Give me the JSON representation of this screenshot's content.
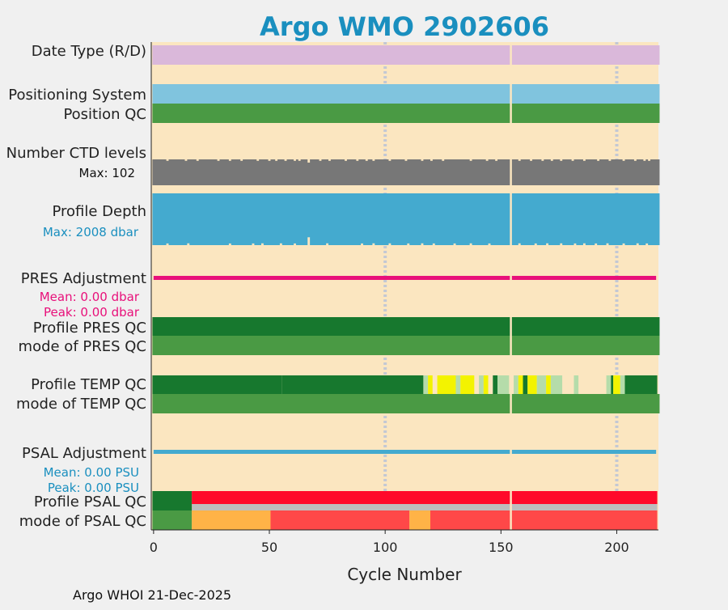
{
  "chart_data": {
    "type": "heatmap",
    "title": "Argo WMO 2902606",
    "xlabel": "Cycle Number",
    "xlim": [
      -1,
      218
    ],
    "xticks": [
      0,
      50,
      100,
      150,
      200
    ],
    "xtick_labels": [
      "0",
      "50",
      "100",
      "150",
      "200"
    ],
    "grid_x": [
      100,
      200
    ],
    "missing_cycle": 154,
    "footer": "Argo WHOI 21-Dec-2025",
    "colors": {
      "title": "#1a8fbf",
      "background": "#fbe6c0",
      "date_type": "#dab8da",
      "positioning": "#80c4de",
      "qc_good": "#4a9a44",
      "qc_dark": "#17782e",
      "ctd": "#777777",
      "depth": "#44aacf",
      "pres_adj": "#e8107a",
      "psal_adj": "#44aacf",
      "temp_light": "#b5dcaa",
      "temp_yellow": "#f3f300",
      "psal_red": "#ff0a2a",
      "psal_grey": "#bdbdbd",
      "psal_orange": "#ffb347",
      "psal_lightred": "#ff4848"
    },
    "rows": [
      {
        "id": "date-type",
        "label": "Date Type (R/D)"
      },
      {
        "id": "positioning-system",
        "label": "Positioning System"
      },
      {
        "id": "position-qc",
        "label": "Position QC"
      },
      {
        "id": "ctd-levels",
        "label": "Number CTD levels",
        "max_label": "Max: 102"
      },
      {
        "id": "profile-depth",
        "label": "Profile Depth",
        "max_label": "Max: 2008 dbar"
      },
      {
        "id": "pres-adjustment",
        "label": "PRES Adjustment",
        "mean_label": "Mean: 0.00 dbar",
        "peak_label": "Peak: 0.00 dbar"
      },
      {
        "id": "profile-pres-qc",
        "label": "Profile PRES QC"
      },
      {
        "id": "mode-pres-qc",
        "label": "mode of PRES QC"
      },
      {
        "id": "profile-temp-qc",
        "label": "Profile TEMP QC"
      },
      {
        "id": "mode-temp-qc",
        "label": "mode of TEMP QC"
      },
      {
        "id": "psal-adjustment",
        "label": "PSAL Adjustment",
        "mean_label": "Mean: 0.00 PSU",
        "peak_label": "Peak: 0.00 PSU"
      },
      {
        "id": "profile-psal-qc",
        "label": "Profile PSAL QC"
      },
      {
        "id": "mode-psal-qc",
        "label": "mode of PSAL QC"
      }
    ],
    "series": {
      "ctd_levels_max": 102,
      "ctd_levels_dips": [
        [
          6,
          101
        ],
        [
          14,
          101
        ],
        [
          19,
          101
        ],
        [
          28,
          101
        ],
        [
          33,
          101
        ],
        [
          38,
          101
        ],
        [
          45,
          101
        ],
        [
          50,
          101
        ],
        [
          53,
          101
        ],
        [
          57,
          101
        ],
        [
          61,
          101
        ],
        [
          63,
          101
        ],
        [
          67,
          94
        ],
        [
          72,
          101
        ],
        [
          76,
          101
        ],
        [
          83,
          101
        ],
        [
          88,
          101
        ],
        [
          92,
          101
        ],
        [
          95,
          101
        ],
        [
          102,
          101
        ],
        [
          109,
          101
        ],
        [
          116,
          101
        ],
        [
          120,
          101
        ],
        [
          125,
          101
        ],
        [
          137,
          101
        ],
        [
          144,
          101
        ],
        [
          148,
          101
        ],
        [
          158,
          101
        ],
        [
          163,
          101
        ],
        [
          168,
          101
        ],
        [
          172,
          101
        ],
        [
          176,
          101
        ],
        [
          181,
          101
        ],
        [
          186,
          101
        ],
        [
          192,
          101
        ],
        [
          197,
          101
        ],
        [
          203,
          101
        ],
        [
          208,
          101
        ],
        [
          212,
          101
        ],
        [
          214,
          101
        ]
      ],
      "profile_depth_max": 2008,
      "profile_depth_dips": [
        [
          6,
          1990
        ],
        [
          15,
          1985
        ],
        [
          33,
          1990
        ],
        [
          43,
          1990
        ],
        [
          47,
          1985
        ],
        [
          55,
          1985
        ],
        [
          61,
          1990
        ],
        [
          67,
          1750
        ],
        [
          75,
          1985
        ],
        [
          90,
          1990
        ],
        [
          95,
          1985
        ],
        [
          102,
          1985
        ],
        [
          110,
          1990
        ],
        [
          116,
          1985
        ],
        [
          121,
          1990
        ],
        [
          130,
          1990
        ],
        [
          137,
          1985
        ],
        [
          145,
          1990
        ],
        [
          158,
          1985
        ],
        [
          165,
          1990
        ],
        [
          170,
          1985
        ],
        [
          176,
          1985
        ],
        [
          182,
          1990
        ],
        [
          186,
          1985
        ],
        [
          191,
          1990
        ],
        [
          196,
          1985
        ],
        [
          203,
          1990
        ],
        [
          209,
          1985
        ],
        [
          213,
          1990
        ]
      ],
      "pres_adjustment_mean": 0.0,
      "pres_adjustment_peak": 0.0,
      "psal_adjustment_mean": 0.0,
      "psal_adjustment_peak": 0.0,
      "profile_temp_qc_segments": [
        {
          "from": 0,
          "to": 55,
          "qc": "A"
        },
        {
          "from": 56,
          "to": 116,
          "qc": "A"
        },
        {
          "from": 117,
          "to": 118,
          "qc": "B"
        },
        {
          "from": 119,
          "to": 120,
          "qc": "C"
        },
        {
          "from": 121,
          "to": 122,
          "qc": "D"
        },
        {
          "from": 123,
          "to": 130,
          "qc": "C"
        },
        {
          "from": 131,
          "to": 132,
          "qc": "B"
        },
        {
          "from": 133,
          "to": 138,
          "qc": "C"
        },
        {
          "from": 139,
          "to": 140,
          "qc": "D"
        },
        {
          "from": 141,
          "to": 142,
          "qc": "B"
        },
        {
          "from": 143,
          "to": 144,
          "qc": "C"
        },
        {
          "from": 145,
          "to": 146,
          "qc": "D"
        },
        {
          "from": 147,
          "to": 148,
          "qc": "A"
        },
        {
          "from": 149,
          "to": 153,
          "qc": "B"
        },
        {
          "from": 155,
          "to": 155,
          "qc": "D"
        },
        {
          "from": 156,
          "to": 157,
          "qc": "B"
        },
        {
          "from": 158,
          "to": 159,
          "qc": "C"
        },
        {
          "from": 160,
          "to": 161,
          "qc": "A"
        },
        {
          "from": 162,
          "to": 165,
          "qc": "C"
        },
        {
          "from": 166,
          "to": 169,
          "qc": "B"
        },
        {
          "from": 170,
          "to": 171,
          "qc": "C"
        },
        {
          "from": 172,
          "to": 176,
          "qc": "B"
        },
        {
          "from": 177,
          "to": 181,
          "qc": "D"
        },
        {
          "from": 182,
          "to": 183,
          "qc": "B"
        },
        {
          "from": 184,
          "to": 195,
          "qc": "D"
        },
        {
          "from": 196,
          "to": 197,
          "qc": "B"
        },
        {
          "from": 198,
          "to": 198,
          "qc": "A"
        },
        {
          "from": 199,
          "to": 201,
          "qc": "C"
        },
        {
          "from": 202,
          "to": 203,
          "qc": "B"
        },
        {
          "from": 204,
          "to": 217,
          "qc": "A"
        }
      ],
      "profile_psal_qc_segments": [
        {
          "from": 0,
          "to": 16,
          "qc": "A"
        },
        {
          "from": 17,
          "to": 217,
          "qc": "F"
        }
      ],
      "mode_psal_qc_segments": [
        {
          "from": 0,
          "to": 16,
          "qc": "1"
        },
        {
          "from": 17,
          "to": 50,
          "qc": "3"
        },
        {
          "from": 51,
          "to": 110,
          "qc": "4"
        },
        {
          "from": 111,
          "to": 119,
          "qc": "3"
        },
        {
          "from": 120,
          "to": 217,
          "qc": "4"
        }
      ]
    }
  }
}
